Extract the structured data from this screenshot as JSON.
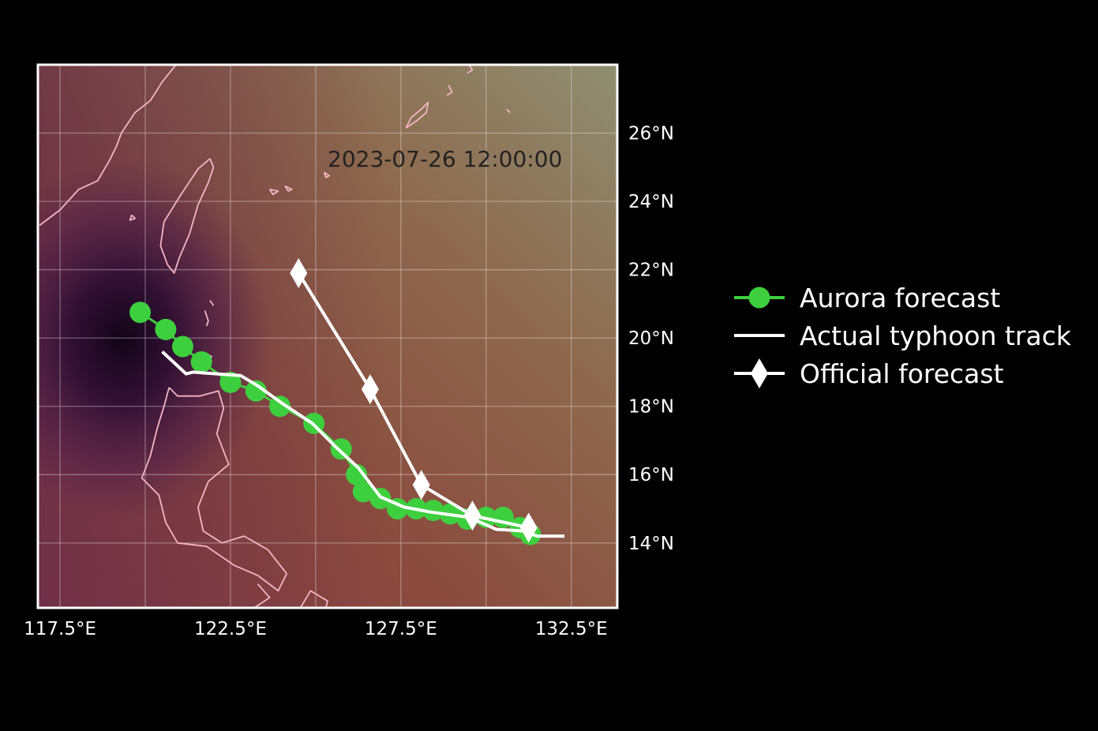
{
  "map": {
    "timestamp": "2023-07-26 12:00:00",
    "extent": {
      "lon_min": 116.85,
      "lon_max": 133.85,
      "lat_min": 12.1,
      "lat_max": 28.0
    },
    "x_ticks": [
      {
        "lon": 117.5,
        "label": "117.5°E"
      },
      {
        "lon": 122.5,
        "label": "122.5°E"
      },
      {
        "lon": 127.5,
        "label": "127.5°E"
      },
      {
        "lon": 132.5,
        "label": "132.5°E"
      }
    ],
    "y_ticks": [
      {
        "lat": 14,
        "label": "14°N"
      },
      {
        "lat": 16,
        "label": "16°N"
      },
      {
        "lat": 18,
        "label": "18°N"
      },
      {
        "lat": 20,
        "label": "20°N"
      },
      {
        "lat": 22,
        "label": "22°N"
      },
      {
        "lat": 24,
        "label": "24°N"
      },
      {
        "lat": 26,
        "label": "26°N"
      }
    ],
    "grid_lons": [
      117.5,
      120,
      122.5,
      125,
      127.5,
      130,
      132.5
    ],
    "grid_lats": [
      14,
      16,
      18,
      20,
      22,
      24,
      26
    ],
    "colors": {
      "aurora": "#3ecf3e",
      "actual": "#ffffff",
      "official": "#ffffff",
      "coastline": "#f2b6c4",
      "frame": "#ffffff"
    }
  },
  "tracks": {
    "aurora": [
      [
        119.85,
        20.75
      ],
      [
        120.6,
        20.25
      ],
      [
        121.1,
        19.75
      ],
      [
        121.65,
        19.3
      ],
      [
        122.5,
        18.7
      ],
      [
        123.25,
        18.45
      ],
      [
        123.95,
        18.0
      ],
      [
        124.95,
        17.5
      ],
      [
        125.75,
        16.75
      ],
      [
        126.2,
        16.0
      ],
      [
        126.4,
        15.5
      ],
      [
        126.9,
        15.3
      ],
      [
        127.4,
        15.0
      ],
      [
        127.95,
        15.0
      ],
      [
        128.45,
        14.95
      ],
      [
        128.95,
        14.85
      ],
      [
        129.45,
        14.7
      ],
      [
        130.0,
        14.75
      ],
      [
        130.5,
        14.75
      ],
      [
        131.0,
        14.45
      ],
      [
        131.3,
        14.25
      ]
    ],
    "actual": [
      [
        120.5,
        19.6
      ],
      [
        121.2,
        18.95
      ],
      [
        121.4,
        19.0
      ],
      [
        122.8,
        18.9
      ],
      [
        123.3,
        18.6
      ],
      [
        124.0,
        18.1
      ],
      [
        124.9,
        17.5
      ],
      [
        125.6,
        16.8
      ],
      [
        126.25,
        16.2
      ],
      [
        126.9,
        15.35
      ],
      [
        127.6,
        15.05
      ],
      [
        128.4,
        14.9
      ],
      [
        129.5,
        14.75
      ],
      [
        130.3,
        14.4
      ],
      [
        131.1,
        14.35
      ],
      [
        131.5,
        14.2
      ],
      [
        132.3,
        14.2
      ]
    ],
    "official": [
      [
        124.5,
        21.9
      ],
      [
        126.6,
        18.5
      ],
      [
        128.1,
        15.7
      ],
      [
        129.6,
        14.8
      ],
      [
        131.25,
        14.45
      ]
    ]
  },
  "coastlines": [
    [
      [
        121.9,
        25.25
      ],
      [
        121.55,
        24.95
      ],
      [
        121.05,
        24.2
      ],
      [
        120.55,
        23.4
      ],
      [
        120.45,
        22.7
      ],
      [
        120.65,
        22.15
      ],
      [
        120.85,
        21.9
      ],
      [
        121.0,
        22.35
      ],
      [
        121.3,
        23.05
      ],
      [
        121.55,
        23.9
      ],
      [
        121.85,
        24.55
      ],
      [
        122.0,
        25.0
      ],
      [
        121.9,
        25.25
      ]
    ],
    [
      [
        120.7,
        18.55
      ],
      [
        120.95,
        18.3
      ],
      [
        121.6,
        18.3
      ],
      [
        122.15,
        18.45
      ],
      [
        122.3,
        17.95
      ],
      [
        122.1,
        17.2
      ],
      [
        122.45,
        16.3
      ],
      [
        121.85,
        15.8
      ],
      [
        121.55,
        15.05
      ],
      [
        121.7,
        14.35
      ],
      [
        122.25,
        14.0
      ],
      [
        122.9,
        14.2
      ],
      [
        123.6,
        13.8
      ],
      [
        124.15,
        13.1
      ],
      [
        123.9,
        12.6
      ],
      [
        123.3,
        13.05
      ],
      [
        122.6,
        13.35
      ],
      [
        121.8,
        13.9
      ],
      [
        120.95,
        14.0
      ],
      [
        120.6,
        14.6
      ],
      [
        120.4,
        15.4
      ],
      [
        119.9,
        15.9
      ],
      [
        120.15,
        16.55
      ],
      [
        120.35,
        17.35
      ],
      [
        120.55,
        18.0
      ],
      [
        120.7,
        18.55
      ]
    ],
    [
      [
        124.55,
        12.1
      ],
      [
        124.85,
        12.6
      ],
      [
        125.35,
        12.3
      ],
      [
        125.3,
        12.1
      ]
    ],
    [
      [
        123.3,
        12.8
      ],
      [
        123.65,
        12.4
      ],
      [
        123.2,
        12.1
      ]
    ],
    [
      [
        119.3,
        26.0
      ],
      [
        119.7,
        26.6
      ],
      [
        120.15,
        26.95
      ],
      [
        120.5,
        27.5
      ],
      [
        120.9,
        28.0
      ]
    ],
    [
      [
        116.9,
        23.3
      ],
      [
        117.5,
        23.75
      ],
      [
        118.05,
        24.35
      ],
      [
        118.6,
        24.6
      ],
      [
        118.95,
        25.2
      ],
      [
        119.15,
        25.6
      ],
      [
        119.3,
        26.0
      ]
    ],
    [
      [
        127.65,
        26.15
      ],
      [
        127.8,
        26.45
      ],
      [
        128.1,
        26.7
      ],
      [
        128.3,
        26.9
      ],
      [
        128.25,
        26.6
      ],
      [
        127.95,
        26.35
      ],
      [
        127.65,
        26.15
      ]
    ],
    [
      [
        124.1,
        24.45
      ],
      [
        124.3,
        24.35
      ],
      [
        124.2,
        24.3
      ],
      [
        124.1,
        24.45
      ]
    ],
    [
      [
        125.25,
        24.85
      ],
      [
        125.4,
        24.75
      ],
      [
        125.3,
        24.7
      ],
      [
        125.25,
        24.85
      ]
    ],
    [
      [
        123.65,
        24.35
      ],
      [
        123.9,
        24.3
      ],
      [
        123.75,
        24.2
      ],
      [
        123.65,
        24.35
      ]
    ],
    [
      [
        121.75,
        20.8
      ],
      [
        121.85,
        20.5
      ],
      [
        121.8,
        20.35
      ]
    ],
    [
      [
        121.9,
        21.1
      ],
      [
        122.0,
        20.95
      ]
    ],
    [
      [
        121.8,
        19.55
      ],
      [
        121.95,
        19.45
      ],
      [
        121.85,
        19.35
      ],
      [
        121.8,
        19.55
      ]
    ],
    [
      [
        119.6,
        23.6
      ],
      [
        119.7,
        23.5
      ],
      [
        119.55,
        23.45
      ],
      [
        119.6,
        23.6
      ]
    ],
    [
      [
        129.5,
        28.0
      ],
      [
        129.6,
        27.85
      ],
      [
        129.45,
        27.75
      ]
    ],
    [
      [
        128.9,
        27.4
      ],
      [
        129.0,
        27.2
      ],
      [
        128.85,
        27.1
      ]
    ],
    [
      [
        130.6,
        26.7
      ],
      [
        130.7,
        26.6
      ]
    ],
    [
      [
        120.9,
        28.0
      ],
      [
        121.2,
        28.0
      ]
    ]
  ],
  "legend": [
    {
      "key": "aurora",
      "label": "Aurora forecast"
    },
    {
      "key": "actual",
      "label": "Actual typhoon track"
    },
    {
      "key": "official",
      "label": "Official forecast"
    }
  ]
}
